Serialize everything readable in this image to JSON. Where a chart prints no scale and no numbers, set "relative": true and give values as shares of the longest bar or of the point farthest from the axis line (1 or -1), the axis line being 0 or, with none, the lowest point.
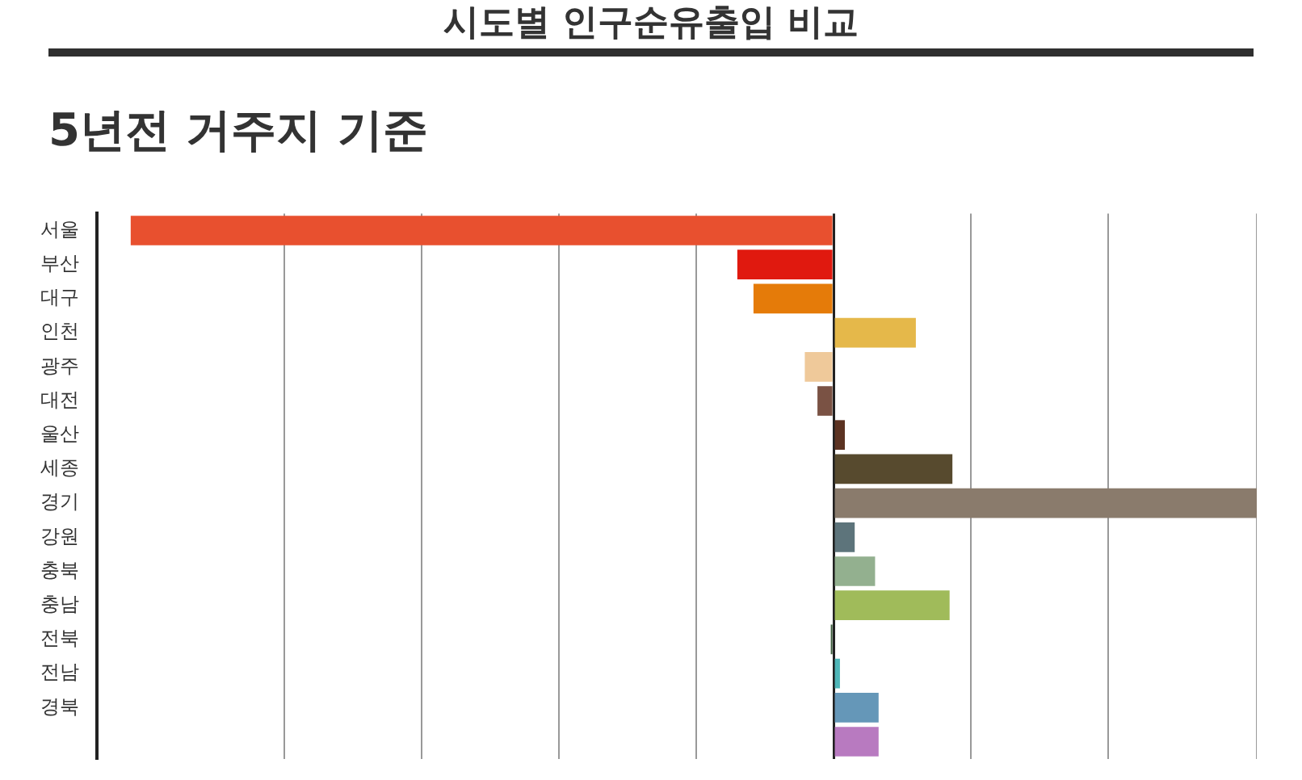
{
  "chart_data": {
    "type": "bar",
    "title": "시도별 인구순유출입 비교",
    "subtitle": "5년전 거주지 기준",
    "orientation": "horizontal",
    "relative": true,
    "grid": "x",
    "legend": false,
    "categories": [
      "서울",
      "부산",
      "대구",
      "인천",
      "광주",
      "대전",
      "울산",
      "세종",
      "경기",
      "강원",
      "충북",
      "충남",
      "전북",
      "전남",
      "경북",
      null
    ],
    "values": [
      -1,
      -0.137,
      -0.114,
      0.117,
      -0.041,
      -0.023,
      0.016,
      0.169,
      0.602,
      0.03,
      0.059,
      0.165,
      -0.004,
      0.009,
      0.064,
      0.064
    ],
    "colors": [
      "#e8502f",
      "#e0190f",
      "#e57b09",
      "#e5b84a",
      "#efc99a",
      "#7a5244",
      "#5c3322",
      "#574a2e",
      "#8a7b6c",
      "#5d747b",
      "#93b08f",
      "#a0bb5a",
      "#3a5a3a",
      "#4fb6b8",
      "#6597b8",
      "#b87ac0"
    ]
  }
}
